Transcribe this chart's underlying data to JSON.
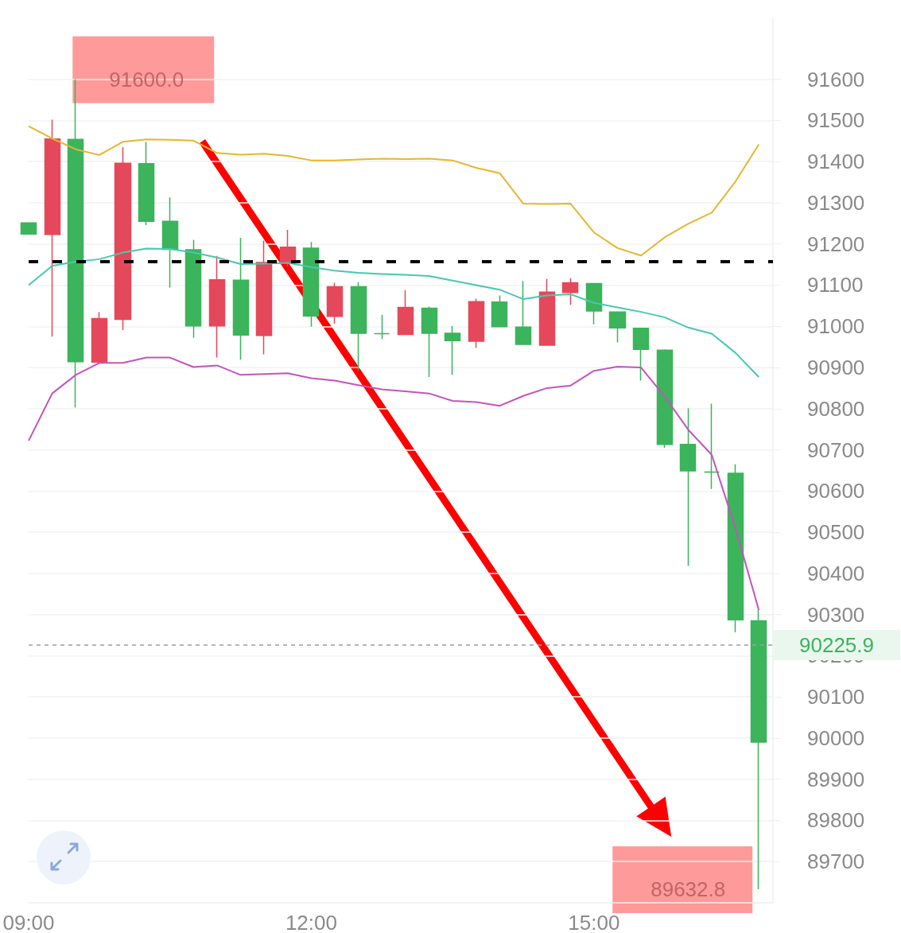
{
  "chart_data": {
    "type": "candlestick",
    "x": [
      9,
      9.25,
      9.5,
      9.75,
      10,
      10.25,
      10.5,
      10.75,
      11,
      11.25,
      11.5,
      11.75,
      12,
      12.25,
      12.5,
      12.75,
      13,
      13.25,
      13.5,
      13.75,
      14,
      14.25,
      14.5,
      14.75,
      15,
      15.25,
      15.5,
      15.75,
      16,
      16.25,
      16.5,
      16.75
    ],
    "ohlc": [
      [
        91251,
        91251,
        91224,
        91224
      ],
      [
        91223,
        91502,
        90975,
        91455
      ],
      [
        91454,
        91600,
        90803,
        90914
      ],
      [
        90913,
        91035,
        90910,
        91019
      ],
      [
        91017,
        91435,
        90991,
        91396
      ],
      [
        91395,
        91448,
        91246,
        91255
      ],
      [
        91255,
        91313,
        91094,
        91187
      ],
      [
        91186,
        91210,
        90972,
        91001
      ],
      [
        91001,
        91171,
        90924,
        91113
      ],
      [
        91112,
        91215,
        90919,
        90979
      ],
      [
        90978,
        91208,
        90932,
        91155
      ],
      [
        91154,
        91234,
        91145,
        91192
      ],
      [
        91190,
        91205,
        90999,
        91025
      ],
      [
        91024,
        91106,
        91007,
        91096
      ],
      [
        91096,
        91107,
        90893,
        90983
      ],
      [
        90982,
        91028,
        90969,
        90982
      ],
      [
        90980,
        91088,
        90980,
        91046
      ],
      [
        91044,
        91048,
        90877,
        90983
      ],
      [
        90983,
        91001,
        90882,
        90965
      ],
      [
        90964,
        91067,
        90948,
        91060
      ],
      [
        91059,
        91075,
        90999,
        90999
      ],
      [
        90998,
        91110,
        90956,
        90956
      ],
      [
        90954,
        91115,
        90953,
        91083
      ],
      [
        91082,
        91117,
        91052,
        91106
      ],
      [
        91104,
        91104,
        91005,
        91037
      ],
      [
        91035,
        91035,
        90961,
        90996
      ],
      [
        90995,
        90995,
        90868,
        90944
      ],
      [
        90942,
        90944,
        90705,
        90713
      ],
      [
        90713,
        90801,
        90418,
        90649
      ],
      [
        90646,
        90812,
        90605,
        90646
      ],
      [
        90643,
        90665,
        90257,
        90287
      ],
      [
        90285,
        90311,
        89632.8,
        89990
      ]
    ],
    "colors": [
      "#3bb45b",
      "#e5485a",
      "#3bb45b",
      "#e5485a",
      "#e5485a",
      "#3bb45b",
      "#3bb45b",
      "#3bb45b",
      "#e5485a",
      "#3bb45b",
      "#e5485a",
      "#e5485a",
      "#3bb45b",
      "#e5485a",
      "#3bb45b",
      "#3bb45b",
      "#e5485a",
      "#3bb45b",
      "#3bb45b",
      "#e5485a",
      "#3bb45b",
      "#3bb45b",
      "#e5485a",
      "#e5485a",
      "#3bb45b",
      "#3bb45b",
      "#3bb45b",
      "#3bb45b",
      "#3bb45b",
      "#3bb45b",
      "#3bb45b",
      "#3bb45b"
    ],
    "series": [
      {
        "type": "line",
        "color": "#e8b52e",
        "values": [
          91486,
          91456,
          91430,
          91416,
          91448,
          91454,
          91453,
          91451,
          91421,
          91417,
          91419,
          91414,
          91403,
          91403,
          91405,
          91407,
          91406,
          91407,
          91403,
          91385,
          91372,
          91298,
          91297,
          91298,
          91228,
          91190,
          91172,
          91216,
          91249,
          91276,
          91351,
          91442
        ]
      },
      {
        "type": "line",
        "color": "#45c9b0",
        "values": [
          91100,
          91147,
          91157,
          91163,
          91179,
          91189,
          91188,
          91179,
          91167,
          91151,
          91152,
          91154,
          91144,
          91135,
          91130,
          91127,
          91125,
          91122,
          91111,
          91100,
          91089,
          91066,
          91075,
          91078,
          91057,
          91046,
          91035,
          91022,
          90997,
          90982,
          90936,
          90877
        ]
      },
      {
        "type": "line",
        "color": "#c653bc",
        "values": [
          90722,
          90837,
          90882,
          90911,
          90911,
          90924,
          90924,
          90901,
          90905,
          90882,
          90884,
          90886,
          90874,
          90868,
          90857,
          90847,
          90842,
          90837,
          90819,
          90816,
          90807,
          90831,
          90850,
          90856,
          90892,
          90902,
          90900,
          90830,
          90749,
          90688,
          90511,
          90311
        ]
      }
    ],
    "xlim": [
      9,
      16.9
    ],
    "ylim": [
      89600,
      91750
    ],
    "xticks": [
      {
        "value": 9,
        "label": "09:00"
      },
      {
        "value": 12,
        "label": "12:00"
      },
      {
        "value": 15,
        "label": "15:00"
      }
    ],
    "yticks": [
      89700,
      89800,
      89900,
      90000,
      90100,
      90200,
      90300,
      90400,
      90500,
      90600,
      90700,
      90800,
      90900,
      91000,
      91100,
      91200,
      91300,
      91400,
      91500,
      91600
    ],
    "grid": "y",
    "marker": "none",
    "ref_lines": [
      {
        "axis": "y",
        "value": 91158,
        "color": "#000000",
        "line_style": "dashed"
      },
      {
        "axis": "y",
        "value": 90225.9,
        "label": "90225.9",
        "color": "#9e9e9e",
        "line_style": "dashed"
      }
    ],
    "annotations": [
      {
        "text": "91600.0",
        "x": 9.5,
        "y": 91600
      },
      {
        "text": "89632.8",
        "x": 16.75,
        "y": 89632.8
      }
    ]
  }
}
